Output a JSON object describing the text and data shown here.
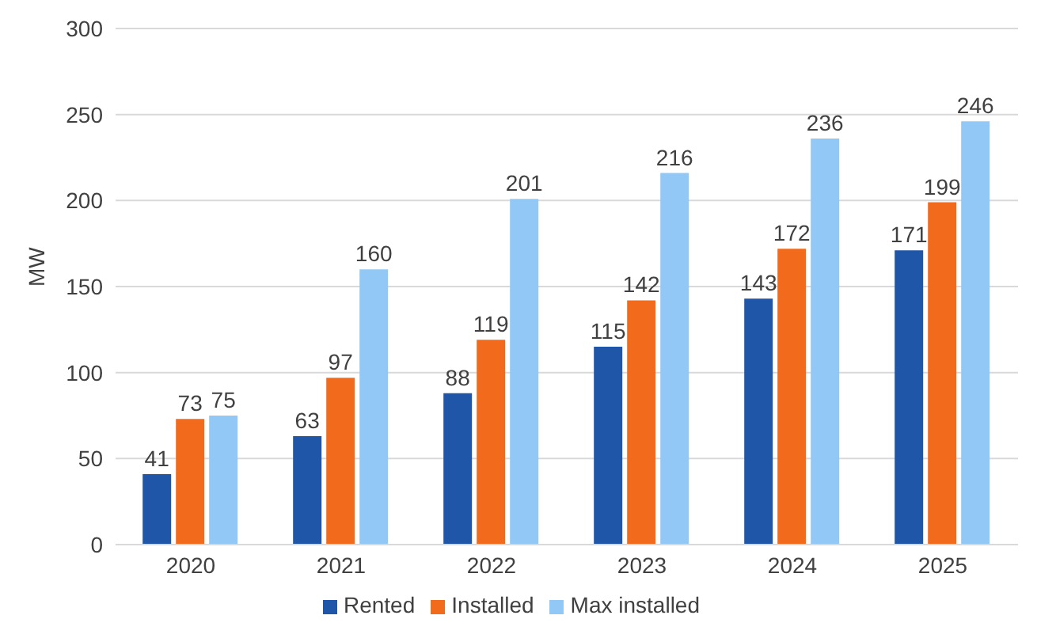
{
  "chart_data": {
    "type": "bar",
    "ylabel": "MW",
    "categories": [
      "2020",
      "2021",
      "2022",
      "2023",
      "2024",
      "2025"
    ],
    "series": [
      {
        "name": "Rented",
        "color": "#1f56a8",
        "values": [
          41,
          63,
          88,
          115,
          143,
          171
        ]
      },
      {
        "name": "Installed",
        "color": "#f26b1d",
        "values": [
          73,
          97,
          119,
          142,
          172,
          199
        ]
      },
      {
        "name": "Max installed",
        "color": "#92c8f5",
        "values": [
          75,
          160,
          201,
          216,
          236,
          246
        ]
      }
    ],
    "ylim": [
      0,
      300
    ],
    "yticks": [
      0,
      50,
      100,
      150,
      200,
      250,
      300
    ],
    "grid": "y",
    "legend": "bottom",
    "data_labels": true
  }
}
